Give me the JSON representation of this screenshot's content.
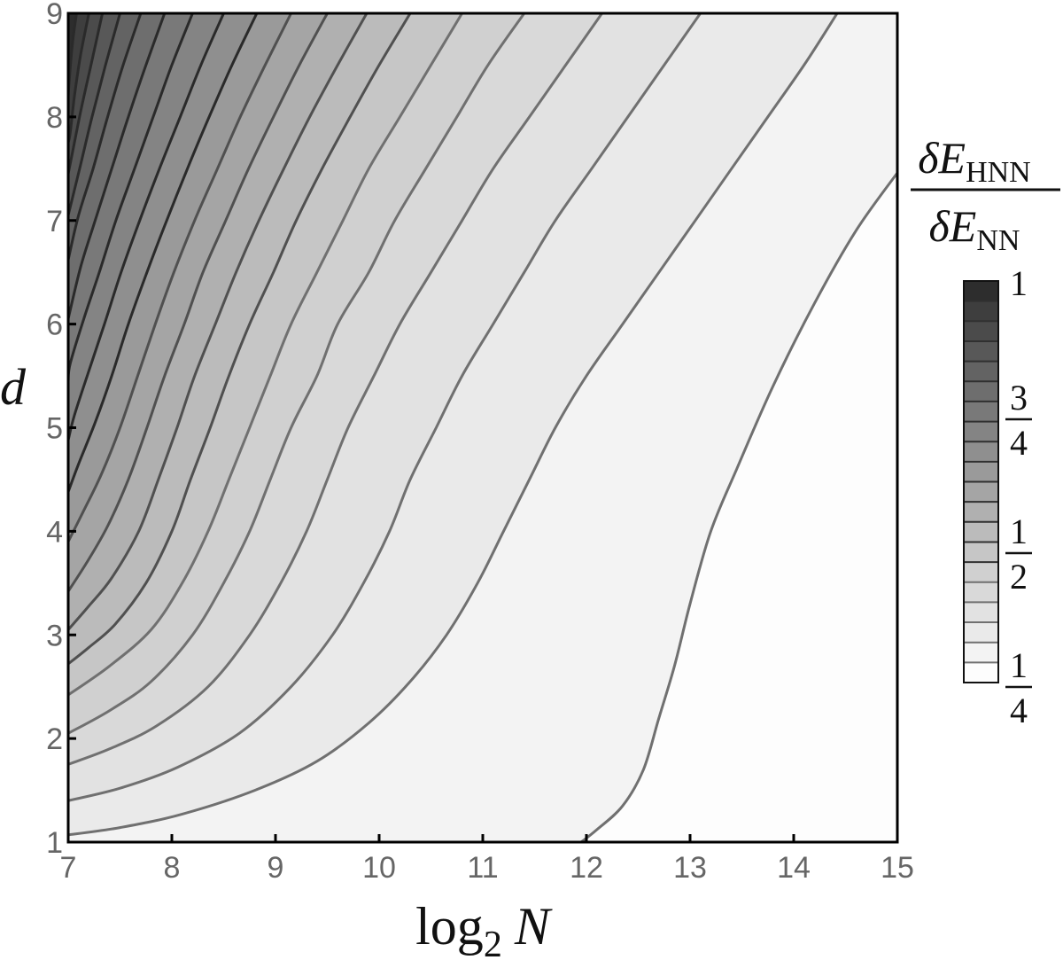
{
  "chart_data": {
    "type": "heatmap",
    "subtype": "filled-contour",
    "title": "",
    "xlabel": "log2 N",
    "xlabel_parts": {
      "base": "log",
      "sub": "2",
      "var": "N"
    },
    "ylabel": "d",
    "xlim": [
      7,
      15
    ],
    "ylim": [
      1,
      9
    ],
    "x_ticks": [
      7,
      8,
      9,
      10,
      11,
      12,
      13,
      14,
      15
    ],
    "y_ticks": [
      1,
      2,
      3,
      4,
      5,
      6,
      7,
      8,
      9
    ],
    "grid": false,
    "colorbar": {
      "label": "δE_HNN / δE_NN",
      "label_parts": {
        "num_greek": "δ",
        "num_var": "E",
        "num_sub": "HNN",
        "den_greek": "δ",
        "den_var": "E",
        "den_sub": "NN"
      },
      "range": [
        0.25,
        1.0
      ],
      "n_levels": 20,
      "tick_labels": [
        {
          "value": 1.0,
          "text": "1",
          "num": "1",
          "den": ""
        },
        {
          "value": 0.75,
          "text": "3/4",
          "num": "3",
          "den": "4"
        },
        {
          "value": 0.5,
          "text": "1/2",
          "num": "1",
          "den": "2"
        },
        {
          "value": 0.25,
          "text": "1/4",
          "num": "1",
          "den": "4"
        }
      ],
      "band_colors": [
        "#fdfdfd",
        "#f3f3f3",
        "#eaeaea",
        "#e2e2e2",
        "#d9d9d9",
        "#d0d0d0",
        "#c6c6c6",
        "#bbbbbb",
        "#b0b0b0",
        "#a5a5a5",
        "#9a9a9a",
        "#8f8f8f",
        "#848484",
        "#797979",
        "#6e6e6e",
        "#636363",
        "#585858",
        "#4b4b4b",
        "#3e3e3e",
        "#2d2d2d"
      ]
    },
    "contour_line_color_light": "#707070",
    "contour_line_color_dark": "#2a2a2a",
    "contours": [
      {
        "level": 0.2875,
        "points": [
          [
            15,
            7.46
          ],
          [
            14.6,
            6.9
          ],
          [
            14.2,
            6.2
          ],
          [
            13.8,
            5.4
          ],
          [
            13.45,
            4.6
          ],
          [
            13.2,
            4.0
          ],
          [
            13.0,
            3.3
          ],
          [
            12.85,
            2.7
          ],
          [
            12.7,
            2.2
          ],
          [
            12.55,
            1.7
          ],
          [
            12.35,
            1.35
          ],
          [
            12.1,
            1.12
          ],
          [
            11.95,
            1.0
          ]
        ]
      },
      {
        "level": 0.325,
        "points": [
          [
            14.42,
            9
          ],
          [
            14.1,
            8.5
          ],
          [
            13.75,
            8
          ],
          [
            13.4,
            7.5
          ],
          [
            13.05,
            7
          ],
          [
            12.7,
            6.5
          ],
          [
            12.35,
            6
          ],
          [
            12.0,
            5.5
          ],
          [
            11.7,
            5
          ],
          [
            11.45,
            4.5
          ],
          [
            11.2,
            4
          ],
          [
            10.95,
            3.5
          ],
          [
            10.65,
            3
          ],
          [
            10.3,
            2.55
          ],
          [
            9.9,
            2.15
          ],
          [
            9.4,
            1.78
          ],
          [
            8.8,
            1.5
          ],
          [
            8.1,
            1.27
          ],
          [
            7.5,
            1.14
          ],
          [
            7,
            1.07
          ]
        ]
      },
      {
        "level": 0.3625,
        "points": [
          [
            13.1,
            9
          ],
          [
            12.75,
            8.5
          ],
          [
            12.4,
            8
          ],
          [
            12.05,
            7.5
          ],
          [
            11.7,
            7
          ],
          [
            11.4,
            6.5
          ],
          [
            11.1,
            6
          ],
          [
            10.8,
            5.5
          ],
          [
            10.55,
            5
          ],
          [
            10.3,
            4.5
          ],
          [
            10.1,
            4
          ],
          [
            9.85,
            3.5
          ],
          [
            9.55,
            3
          ],
          [
            9.15,
            2.5
          ],
          [
            8.65,
            2.05
          ],
          [
            8.05,
            1.72
          ],
          [
            7.5,
            1.52
          ],
          [
            7,
            1.4
          ]
        ]
      },
      {
        "level": 0.4,
        "points": [
          [
            12.15,
            9
          ],
          [
            11.8,
            8.5
          ],
          [
            11.45,
            8
          ],
          [
            11.1,
            7.5
          ],
          [
            10.8,
            7
          ],
          [
            10.5,
            6.5
          ],
          [
            10.2,
            6
          ],
          [
            9.95,
            5.5
          ],
          [
            9.7,
            5
          ],
          [
            9.5,
            4.5
          ],
          [
            9.3,
            4
          ],
          [
            9.05,
            3.5
          ],
          [
            8.75,
            3
          ],
          [
            8.35,
            2.5
          ],
          [
            7.85,
            2.12
          ],
          [
            7.4,
            1.9
          ],
          [
            7,
            1.75
          ]
        ]
      },
      {
        "level": 0.4375,
        "points": [
          [
            11.4,
            9
          ],
          [
            11.05,
            8.5
          ],
          [
            10.75,
            8
          ],
          [
            10.45,
            7.5
          ],
          [
            10.15,
            7
          ],
          [
            9.9,
            6.5
          ],
          [
            9.6,
            6
          ],
          [
            9.4,
            5.5
          ],
          [
            9.15,
            5
          ],
          [
            8.95,
            4.5
          ],
          [
            8.75,
            4
          ],
          [
            8.5,
            3.5
          ],
          [
            8.2,
            3
          ],
          [
            7.8,
            2.55
          ],
          [
            7.4,
            2.27
          ],
          [
            7,
            2.05
          ]
        ]
      },
      {
        "level": 0.475,
        "points": [
          [
            10.8,
            9
          ],
          [
            10.5,
            8.5
          ],
          [
            10.2,
            8
          ],
          [
            9.9,
            7.5
          ],
          [
            9.65,
            7
          ],
          [
            9.4,
            6.5
          ],
          [
            9.15,
            6
          ],
          [
            8.95,
            5.5
          ],
          [
            8.75,
            5
          ],
          [
            8.55,
            4.5
          ],
          [
            8.35,
            4
          ],
          [
            8.1,
            3.5
          ],
          [
            7.8,
            3.05
          ],
          [
            7.4,
            2.7
          ],
          [
            7,
            2.42
          ]
        ]
      },
      {
        "level": 0.5125,
        "points": [
          [
            10.3,
            9
          ],
          [
            10.0,
            8.5
          ],
          [
            9.72,
            8
          ],
          [
            9.45,
            7.5
          ],
          [
            9.2,
            7
          ],
          [
            8.98,
            6.5
          ],
          [
            8.75,
            6
          ],
          [
            8.55,
            5.5
          ],
          [
            8.37,
            5
          ],
          [
            8.18,
            4.5
          ],
          [
            8.0,
            4
          ],
          [
            7.75,
            3.5
          ],
          [
            7.45,
            3.1
          ],
          [
            7.2,
            2.88
          ],
          [
            7,
            2.72
          ]
        ]
      },
      {
        "level": 0.55,
        "points": [
          [
            9.88,
            9
          ],
          [
            9.6,
            8.5
          ],
          [
            9.33,
            8
          ],
          [
            9.08,
            7.5
          ],
          [
            8.84,
            7
          ],
          [
            8.62,
            6.5
          ],
          [
            8.42,
            6
          ],
          [
            8.22,
            5.5
          ],
          [
            8.05,
            5
          ],
          [
            7.87,
            4.5
          ],
          [
            7.68,
            4
          ],
          [
            7.42,
            3.55
          ],
          [
            7.2,
            3.28
          ],
          [
            7,
            3.05
          ]
        ]
      },
      {
        "level": 0.5875,
        "points": [
          [
            9.5,
            9
          ],
          [
            9.23,
            8.5
          ],
          [
            8.98,
            8
          ],
          [
            8.74,
            7.5
          ],
          [
            8.52,
            7
          ],
          [
            8.3,
            6.5
          ],
          [
            8.12,
            6
          ],
          [
            7.93,
            5.5
          ],
          [
            7.76,
            5
          ],
          [
            7.58,
            4.5
          ],
          [
            7.38,
            4.05
          ],
          [
            7.18,
            3.7
          ],
          [
            7,
            3.42
          ]
        ]
      },
      {
        "level": 0.625,
        "points": [
          [
            9.15,
            9
          ],
          [
            8.9,
            8.5
          ],
          [
            8.66,
            8
          ],
          [
            8.44,
            7.5
          ],
          [
            8.22,
            7
          ],
          [
            8.02,
            6.5
          ],
          [
            7.84,
            6
          ],
          [
            7.67,
            5.5
          ],
          [
            7.5,
            5
          ],
          [
            7.32,
            4.55
          ],
          [
            7.14,
            4.18
          ],
          [
            7,
            3.9
          ]
        ]
      },
      {
        "level": 0.6625,
        "points": [
          [
            8.82,
            9
          ],
          [
            8.58,
            8.5
          ],
          [
            8.36,
            8
          ],
          [
            8.15,
            7.5
          ],
          [
            7.95,
            7
          ],
          [
            7.76,
            6.5
          ],
          [
            7.58,
            6
          ],
          [
            7.42,
            5.5
          ],
          [
            7.26,
            5.05
          ],
          [
            7.1,
            4.65
          ],
          [
            7,
            4.38
          ]
        ]
      },
      {
        "level": 0.7,
        "points": [
          [
            8.5,
            9
          ],
          [
            8.28,
            8.5
          ],
          [
            8.08,
            8
          ],
          [
            7.88,
            7.5
          ],
          [
            7.69,
            7
          ],
          [
            7.51,
            6.5
          ],
          [
            7.35,
            6
          ],
          [
            7.2,
            5.55
          ],
          [
            7.06,
            5.12
          ],
          [
            7,
            4.88
          ]
        ]
      },
      {
        "level": 0.7375,
        "points": [
          [
            8.2,
            9
          ],
          [
            8.0,
            8.5
          ],
          [
            7.82,
            8
          ],
          [
            7.64,
            7.5
          ],
          [
            7.46,
            7
          ],
          [
            7.3,
            6.5
          ],
          [
            7.15,
            6.05
          ],
          [
            7.02,
            5.62
          ],
          [
            7,
            5.45
          ]
        ]
      },
      {
        "level": 0.775,
        "points": [
          [
            7.93,
            9
          ],
          [
            7.75,
            8.5
          ],
          [
            7.58,
            8
          ],
          [
            7.42,
            7.5
          ],
          [
            7.26,
            7
          ],
          [
            7.12,
            6.55
          ],
          [
            7,
            6.05
          ]
        ]
      },
      {
        "level": 0.8125,
        "points": [
          [
            7.7,
            9
          ],
          [
            7.53,
            8.5
          ],
          [
            7.38,
            8
          ],
          [
            7.24,
            7.5
          ],
          [
            7.1,
            7.05
          ],
          [
            7,
            6.62
          ]
        ]
      },
      {
        "level": 0.85,
        "points": [
          [
            7.5,
            9
          ],
          [
            7.36,
            8.5
          ],
          [
            7.23,
            8
          ],
          [
            7.11,
            7.5
          ],
          [
            7,
            7.05
          ]
        ]
      },
      {
        "level": 0.8875,
        "points": [
          [
            7.33,
            9
          ],
          [
            7.22,
            8.5
          ],
          [
            7.12,
            8.05
          ],
          [
            7.03,
            7.6
          ],
          [
            7,
            7.45
          ]
        ]
      },
      {
        "level": 0.925,
        "points": [
          [
            7.2,
            9
          ],
          [
            7.12,
            8.6
          ],
          [
            7.06,
            8.2
          ],
          [
            7.02,
            7.85
          ],
          [
            7,
            7.75
          ]
        ]
      },
      {
        "level": 0.9625,
        "points": [
          [
            7.08,
            9
          ],
          [
            7.04,
            8.7
          ],
          [
            7.01,
            8.35
          ],
          [
            7,
            8.2
          ]
        ]
      }
    ]
  }
}
